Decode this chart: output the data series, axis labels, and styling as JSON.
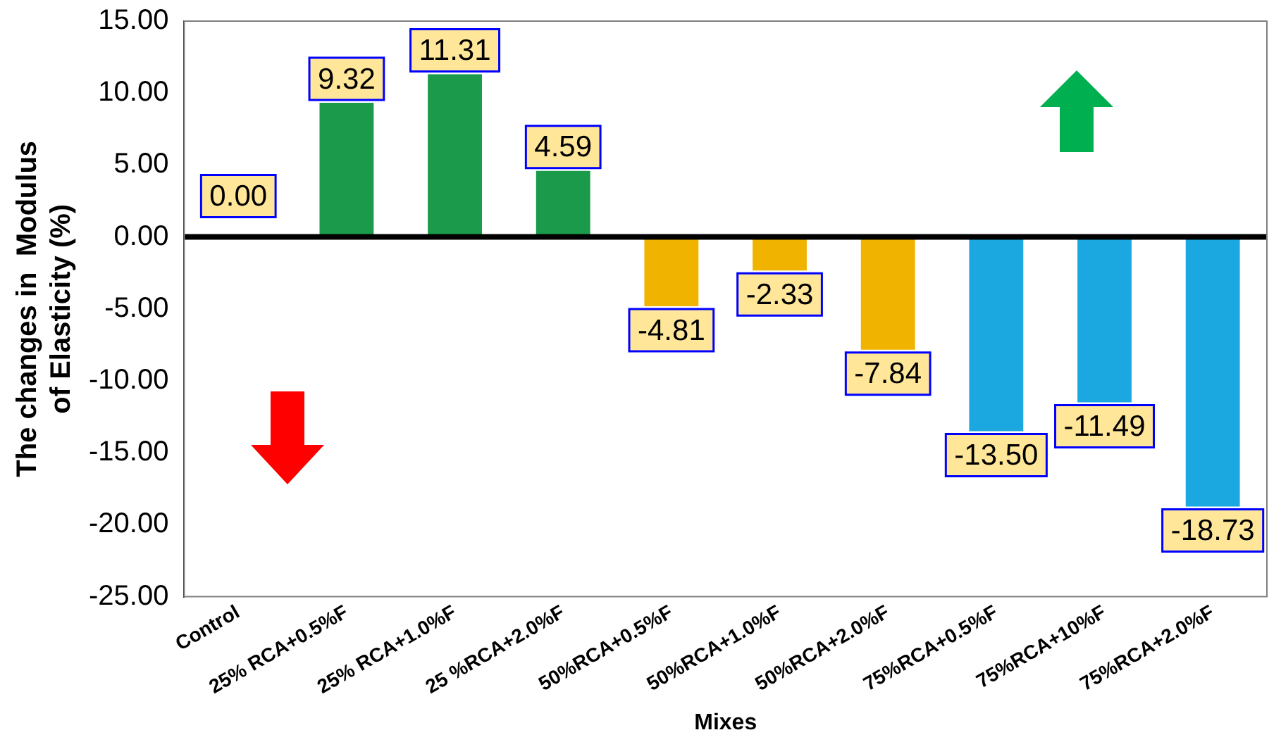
{
  "chart_data": {
    "type": "bar",
    "xlabel": "Mixes",
    "ylabel": "The changes in  Modulus of Elasticity (%)",
    "categories": [
      "Control",
      "25% RCA+0.5%F",
      "25% RCA+1.0%F",
      "25 %RCA+2.0%F",
      "50%RCA+0.5%F",
      "50%RCA+1.0%F",
      "50%RCA+2.0%F",
      "75%RCA+0.5%F",
      "75%RCA+10%F",
      "75%RCA+2.0%F"
    ],
    "values": [
      0,
      9.32,
      11.31,
      4.59,
      -4.81,
      -2.33,
      -7.84,
      -13.5,
      -11.49,
      -18.73
    ],
    "colors": [
      "#1a9a4a",
      "#1a9a4a",
      "#1a9a4a",
      "#1a9a4a",
      "#f0b400",
      "#f0b400",
      "#f0b400",
      "#1ba8e0",
      "#1ba8e0",
      "#1ba8e0"
    ],
    "value_labels": [
      "0.00",
      "9.32",
      "11.31",
      "4.59",
      "-4.81",
      "-2.33",
      "-7.84",
      "-13.50",
      "-11.49",
      "-18.73"
    ],
    "ylim": [
      -25,
      15
    ],
    "yticks": [
      {
        "value": -25,
        "label": "-25.00"
      },
      {
        "value": -20,
        "label": "-20.00"
      },
      {
        "value": -15,
        "label": "-15.00"
      },
      {
        "value": -10,
        "label": "-10.00"
      },
      {
        "value": -5,
        "label": "-5.00"
      },
      {
        "value": 0,
        "label": "0.00"
      },
      {
        "value": 5,
        "label": "5.00"
      },
      {
        "value": 10,
        "label": "10.00"
      },
      {
        "value": 15,
        "label": "15.00"
      }
    ],
    "ref_lines": [
      {
        "axis": "y",
        "value": 0,
        "color": "#000000"
      }
    ],
    "grid": false,
    "legend": false
  }
}
